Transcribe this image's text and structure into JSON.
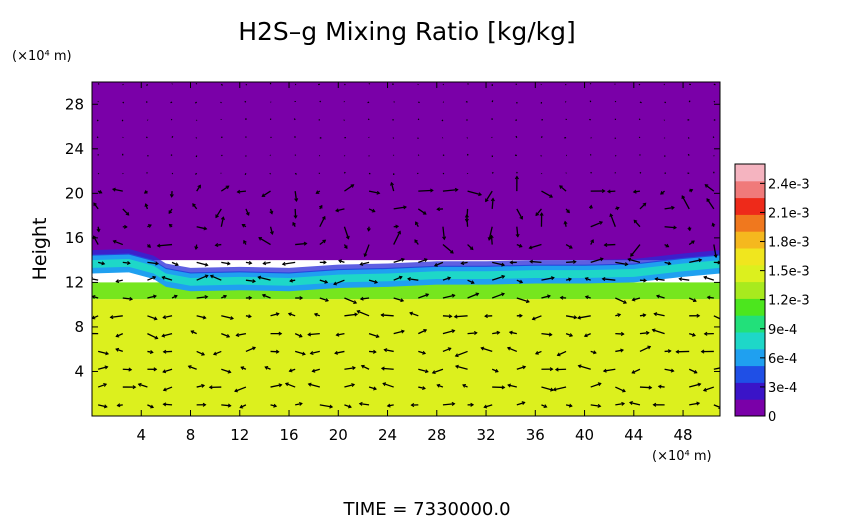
{
  "chart_data": {
    "type": "heatmap",
    "title": "H2S–g Mixing Ratio [kg/kg]",
    "ylabel": "Height",
    "x_unit_label": "(×10⁴ m)",
    "y_unit_label": "(×10⁴ m)",
    "footer": "TIME  =  7330000.0",
    "xlim": [
      0,
      51
    ],
    "ylim": [
      0,
      30
    ],
    "x_ticks": [
      4,
      8,
      12,
      16,
      20,
      24,
      28,
      32,
      36,
      40,
      44,
      48
    ],
    "y_ticks": [
      4,
      8,
      12,
      16,
      20,
      24,
      28
    ],
    "colorbar": {
      "min": 0,
      "max": 0.0026,
      "ticks": [
        {
          "value": 0,
          "label": "0"
        },
        {
          "value": 0.0003,
          "label": "3e-4"
        },
        {
          "value": 0.0006,
          "label": "6e-4"
        },
        {
          "value": 0.0009,
          "label": "9e-4"
        },
        {
          "value": 0.0012,
          "label": "1.2e-3"
        },
        {
          "value": 0.0015,
          "label": "1.5e-3"
        },
        {
          "value": 0.0018,
          "label": "1.8e-3"
        },
        {
          "value": 0.0021,
          "label": "2.1e-3"
        },
        {
          "value": 0.0024,
          "label": "2.4e-3"
        }
      ],
      "colors": [
        "#7a00a8",
        "#3a14c8",
        "#1f4fe6",
        "#1fa0f0",
        "#1ed7c8",
        "#22e07a",
        "#4ce61e",
        "#a8ea1e",
        "#dcf01e",
        "#f0e61e",
        "#f5b81e",
        "#f0781e",
        "#ee2a1a",
        "#f07a7a",
        "#f5b4c0"
      ]
    },
    "fields": {
      "lower_layer": {
        "y_range": [
          0,
          10.5
        ],
        "value": 0.00165,
        "color": "#dcf01e"
      },
      "transition_layer": {
        "y_range": [
          10.5,
          12
        ],
        "value": 0.0013,
        "color": "#76e61e"
      },
      "interface": {
        "y_range": [
          12,
          14
        ],
        "value": 0.0007,
        "color": "#1fa0f0"
      },
      "upper_layer": {
        "y_range": [
          14,
          30
        ],
        "value": 0,
        "color": "#7a00a8"
      }
    },
    "interface_height": [
      {
        "x": 0,
        "y": 13.8
      },
      {
        "x": 3,
        "y": 13.9
      },
      {
        "x": 5,
        "y": 13.3
      },
      {
        "x": 6,
        "y": 12.6
      },
      {
        "x": 8,
        "y": 12.2
      },
      {
        "x": 12,
        "y": 12.3
      },
      {
        "x": 16,
        "y": 12.2
      },
      {
        "x": 20,
        "y": 12.5
      },
      {
        "x": 24,
        "y": 12.6
      },
      {
        "x": 28,
        "y": 12.8
      },
      {
        "x": 32,
        "y": 12.8
      },
      {
        "x": 36,
        "y": 12.9
      },
      {
        "x": 40,
        "y": 12.9
      },
      {
        "x": 44,
        "y": 13.0
      },
      {
        "x": 48,
        "y": 13.5
      },
      {
        "x": 51,
        "y": 13.8
      }
    ],
    "vector_grid": {
      "x_step": 2,
      "y_step": 1.6,
      "x_start": 0.5,
      "y_start": 1
    }
  }
}
